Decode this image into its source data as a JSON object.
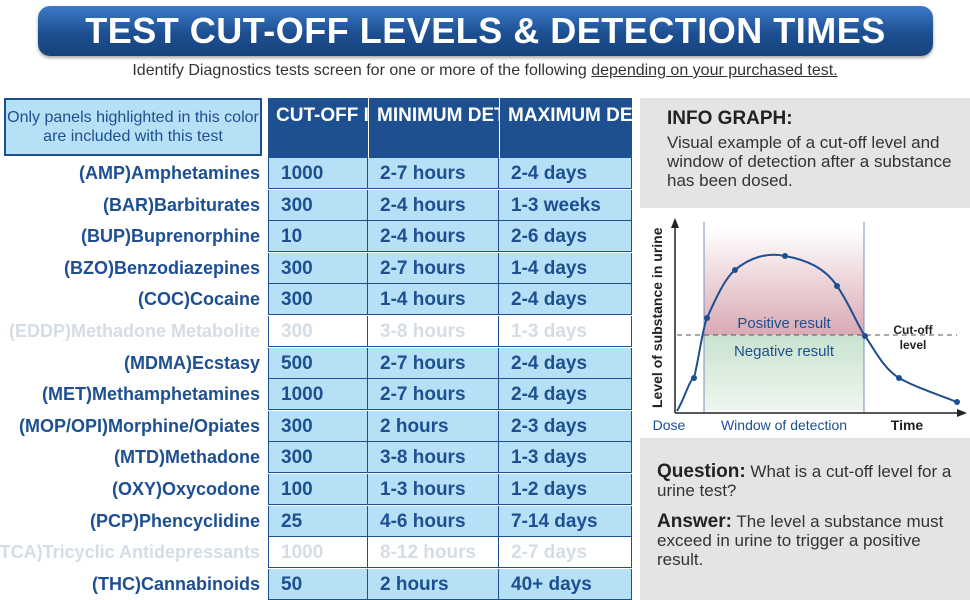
{
  "title": "TEST CUT-OFF LEVELS & DETECTION TIMES",
  "subtitle_prefix": "Identify Diagnostics tests screen for one or more of the following ",
  "subtitle_underlined": "depending on your purchased test.",
  "legend_note": "Only panels highlighted in this color are included with this test",
  "headers": {
    "cutoff": "CUT-OFF IN ng/mL",
    "min": "MINIMUM DETECTION",
    "max": "MAXIMUM DETECTION"
  },
  "colors": {
    "highlight": "#b6e0f6",
    "brand_blue": "#1d4f91",
    "dimmed_text": "#d4dde6"
  },
  "rows": [
    {
      "name": "(AMP)Amphetamines",
      "cutoff": "1000",
      "min": "2-7 hours",
      "max": "2-4 days",
      "highlighted": true
    },
    {
      "name": "(BAR)Barbiturates",
      "cutoff": "300",
      "min": "2-4 hours",
      "max": "1-3 weeks",
      "highlighted": true
    },
    {
      "name": "(BUP)Buprenorphine",
      "cutoff": "10",
      "min": "2-4 hours",
      "max": "2-6 days",
      "highlighted": true
    },
    {
      "name": "(BZO)Benzodiazepines",
      "cutoff": "300",
      "min": "2-7 hours",
      "max": "1-4 days",
      "highlighted": true
    },
    {
      "name": "(COC)Cocaine",
      "cutoff": "300",
      "min": "1-4 hours",
      "max": "2-4 days",
      "highlighted": true
    },
    {
      "name": "(EDDP)Methadone Metabolite",
      "cutoff": "300",
      "min": "3-8 hours",
      "max": "1-3 days",
      "highlighted": false
    },
    {
      "name": "(MDMA)Ecstasy",
      "cutoff": "500",
      "min": "2-7 hours",
      "max": "2-4 days",
      "highlighted": true
    },
    {
      "name": "(MET)Methamphetamines",
      "cutoff": "1000",
      "min": "2-7 hours",
      "max": "2-4 days",
      "highlighted": true
    },
    {
      "name": "(MOP/OPI)Morphine/Opiates",
      "cutoff": "300",
      "min": "2 hours",
      "max": "2-3 days",
      "highlighted": true
    },
    {
      "name": "(MTD)Methadone",
      "cutoff": "300",
      "min": "3-8 hours",
      "max": "1-3 days",
      "highlighted": true
    },
    {
      "name": "(OXY)Oxycodone",
      "cutoff": "100",
      "min": "1-3 hours",
      "max": "1-2 days",
      "highlighted": true
    },
    {
      "name": "(PCP)Phencyclidine",
      "cutoff": "25",
      "min": "4-6 hours",
      "max": "7-14 days",
      "highlighted": true
    },
    {
      "name": "(TCA)Tricyclic Antidepressants",
      "cutoff": "1000",
      "min": "8-12 hours",
      "max": "2-7 days",
      "highlighted": false
    },
    {
      "name": "(THC)Cannabinoids",
      "cutoff": "50",
      "min": "2 hours",
      "max": "40+ days",
      "highlighted": true
    }
  ],
  "info": {
    "title": "INFO GRAPH:",
    "description": "Visual example of a cut-off level and window of detection after a substance has been dosed.",
    "y_axis_label": "Level of substance in urine",
    "positive_label": "Positive result",
    "negative_label": "Negative result",
    "cutoff_label_line1": "Cut-off",
    "cutoff_label_line2": "level",
    "dose_label": "Dose",
    "window_label": "Window of detection",
    "time_label": "Time",
    "question_label": "Question:",
    "question_text": " What is a cut-off level for a urine test?",
    "answer_label": "Answer:",
    "answer_text": " The level a substance must exceed in urine to trigger a positive result."
  }
}
